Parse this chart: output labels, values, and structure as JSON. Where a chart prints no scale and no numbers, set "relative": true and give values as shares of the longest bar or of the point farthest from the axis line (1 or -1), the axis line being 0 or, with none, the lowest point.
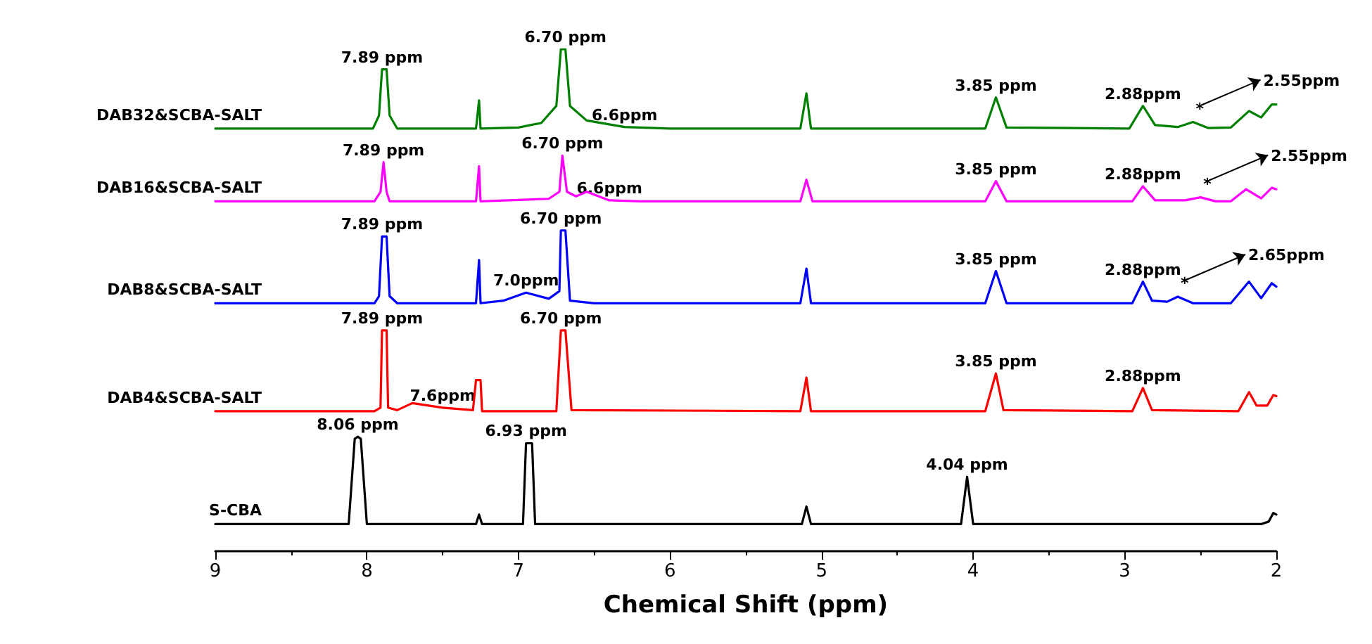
{
  "chart_data": {
    "type": "line",
    "relative": true,
    "xlabel": "Chemical Shift (ppm)",
    "xlim": [
      9,
      2
    ],
    "xticks": [
      9,
      8,
      7,
      6,
      5,
      4,
      3,
      2
    ],
    "marker": "none",
    "line_style": "solid",
    "series": [
      {
        "name": "DAB32&SCBA-SALT",
        "color": "#008000",
        "x": [
          9,
          7.96,
          7.92,
          7.9,
          7.87,
          7.85,
          7.8,
          7.28,
          7.26,
          7.25,
          7.0,
          6.85,
          6.75,
          6.72,
          6.69,
          6.66,
          6.55,
          6.3,
          6.0,
          5.14,
          5.1,
          5.07,
          3.92,
          3.85,
          3.78,
          2.97,
          2.88,
          2.8,
          2.65,
          2.55,
          2.45,
          2.3,
          2.18,
          2.1,
          2.03,
          2.0
        ],
        "values": [
          0.842,
          0.842,
          0.868,
          0.96,
          0.96,
          0.868,
          0.842,
          0.842,
          0.898,
          0.842,
          0.844,
          0.853,
          0.887,
          1.0,
          1.0,
          0.887,
          0.858,
          0.845,
          0.842,
          0.842,
          0.912,
          0.842,
          0.842,
          0.904,
          0.844,
          0.842,
          0.887,
          0.849,
          0.845,
          0.855,
          0.843,
          0.844,
          0.877,
          0.864,
          0.89,
          0.89
        ]
      },
      {
        "name": "DAB16&SCBA-SALT",
        "color": "#ff00ff",
        "x": [
          9,
          7.95,
          7.91,
          7.89,
          7.87,
          7.85,
          7.28,
          7.26,
          7.25,
          6.8,
          6.73,
          6.71,
          6.68,
          6.62,
          6.55,
          6.4,
          6.2,
          5.14,
          5.1,
          5.06,
          3.92,
          3.85,
          3.78,
          2.95,
          2.88,
          2.8,
          2.6,
          2.5,
          2.4,
          2.3,
          2.2,
          2.1,
          2.03,
          2.0
        ],
        "values": [
          0.697,
          0.697,
          0.716,
          0.775,
          0.716,
          0.697,
          0.697,
          0.767,
          0.697,
          0.702,
          0.716,
          0.788,
          0.716,
          0.707,
          0.716,
          0.699,
          0.697,
          0.697,
          0.74,
          0.697,
          0.697,
          0.737,
          0.697,
          0.697,
          0.727,
          0.699,
          0.699,
          0.705,
          0.697,
          0.697,
          0.721,
          0.703,
          0.724,
          0.721
        ]
      },
      {
        "name": "DAB8&SCBA-SALT",
        "color": "#0000ff",
        "x": [
          9,
          7.95,
          7.92,
          7.9,
          7.87,
          7.85,
          7.8,
          7.28,
          7.26,
          7.25,
          7.1,
          6.95,
          6.8,
          6.73,
          6.72,
          6.69,
          6.66,
          6.5,
          5.14,
          5.1,
          5.07,
          3.92,
          3.85,
          3.78,
          2.95,
          2.88,
          2.82,
          2.72,
          2.65,
          2.55,
          2.3,
          2.18,
          2.1,
          2.03,
          2.0
        ],
        "values": [
          0.494,
          0.494,
          0.508,
          0.627,
          0.627,
          0.508,
          0.494,
          0.494,
          0.58,
          0.494,
          0.499,
          0.515,
          0.503,
          0.518,
          0.639,
          0.639,
          0.499,
          0.494,
          0.494,
          0.563,
          0.494,
          0.494,
          0.558,
          0.494,
          0.494,
          0.537,
          0.499,
          0.497,
          0.507,
          0.494,
          0.494,
          0.537,
          0.504,
          0.534,
          0.527
        ]
      },
      {
        "name": "DAB4&SCBA-SALT",
        "color": "#ff0000",
        "x": [
          9,
          7.95,
          7.91,
          7.9,
          7.87,
          7.86,
          7.8,
          7.7,
          7.5,
          7.3,
          7.28,
          7.25,
          7.24,
          6.75,
          6.72,
          6.69,
          6.65,
          5.14,
          5.1,
          5.07,
          3.92,
          3.85,
          3.8,
          2.95,
          2.88,
          2.82,
          2.25,
          2.18,
          2.13,
          2.1,
          2.06,
          2.02,
          2.0
        ],
        "values": [
          0.279,
          0.279,
          0.286,
          0.44,
          0.44,
          0.286,
          0.281,
          0.295,
          0.286,
          0.281,
          0.341,
          0.341,
          0.279,
          0.279,
          0.44,
          0.44,
          0.281,
          0.279,
          0.346,
          0.279,
          0.279,
          0.354,
          0.281,
          0.279,
          0.325,
          0.281,
          0.279,
          0.317,
          0.29,
          0.29,
          0.29,
          0.311,
          0.309
        ]
      },
      {
        "name": "S-CBA",
        "color": "#000000",
        "x": [
          9,
          8.12,
          8.08,
          8.06,
          8.04,
          8.0,
          7.28,
          7.26,
          7.24,
          6.97,
          6.95,
          6.91,
          6.89,
          5.13,
          5.1,
          5.07,
          4.08,
          4.04,
          4.0,
          2.1,
          2.05,
          2.02,
          2.0
        ],
        "values": [
          0.054,
          0.054,
          0.224,
          0.228,
          0.224,
          0.054,
          0.054,
          0.073,
          0.054,
          0.054,
          0.215,
          0.215,
          0.054,
          0.054,
          0.089,
          0.054,
          0.054,
          0.148,
          0.054,
          0.054,
          0.059,
          0.076,
          0.073
        ]
      }
    ],
    "annotations": [
      {
        "text": "7.89 ppm",
        "x": 7.9,
        "y": 0.96
      },
      {
        "text": "6.70 ppm",
        "x": 6.69,
        "y": 1.0
      },
      {
        "text": "6.6ppm",
        "x": 6.3,
        "y": 0.845
      },
      {
        "text": "3.85 ppm",
        "x": 3.85,
        "y": 0.904
      },
      {
        "text": "2.88ppm",
        "x": 2.88,
        "y": 0.887
      },
      {
        "text": "*",
        "x": 2.55,
        "y": 0.855
      },
      "2.55ppm",
      {
        "text": "7.89 ppm",
        "x": 7.89,
        "y": 0.775
      },
      {
        "text": "6.70 ppm",
        "x": 6.71,
        "y": 0.788
      },
      {
        "text": "6.6ppm",
        "x": 6.4,
        "y": 0.699
      },
      {
        "text": "3.85 ppm",
        "x": 3.85,
        "y": 0.737
      },
      {
        "text": "2.88ppm",
        "x": 2.88,
        "y": 0.727
      },
      {
        "text": "*",
        "x": 2.5,
        "y": 0.705
      },
      "2.55ppm",
      {
        "text": "7.89 ppm",
        "x": 7.9,
        "y": 0.627
      },
      {
        "text": "6.70 ppm",
        "x": 6.72,
        "y": 0.639
      },
      {
        "text": "7.0ppm",
        "x": 6.95,
        "y": 0.515
      },
      {
        "text": "3.85 ppm",
        "x": 3.85,
        "y": 0.558
      },
      {
        "text": "2.88ppm",
        "x": 2.88,
        "y": 0.537
      },
      {
        "text": "*",
        "x": 2.65,
        "y": 0.507
      },
      "2.65ppm",
      {
        "text": "7.89 ppm",
        "x": 7.9,
        "y": 0.44
      },
      {
        "text": "6.70 ppm",
        "x": 6.72,
        "y": 0.44
      },
      {
        "text": "7.6ppm",
        "x": 7.5,
        "y": 0.286
      },
      {
        "text": "3.85 ppm",
        "x": 3.85,
        "y": 0.354
      },
      {
        "text": "2.88ppm",
        "x": 2.88,
        "y": 0.325
      },
      {
        "text": "8.06 ppm",
        "x": 8.06,
        "y": 0.228
      },
      {
        "text": "6.93 ppm",
        "x": 6.95,
        "y": 0.215
      },
      {
        "text": "4.04 ppm",
        "x": 4.04,
        "y": 0.148
      }
    ]
  }
}
